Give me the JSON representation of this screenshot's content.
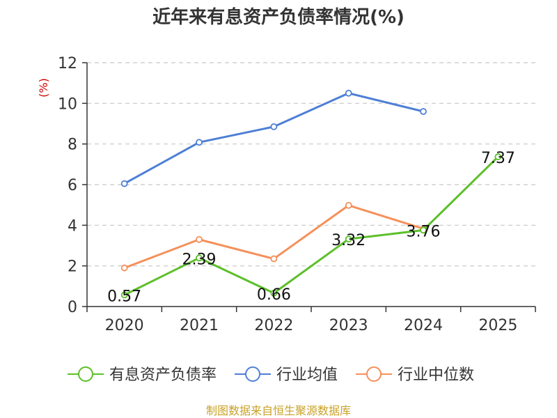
{
  "chart_data": {
    "type": "line",
    "title": "近年来有息资产负债率情况(%)",
    "ylabel": "(%)",
    "xlabel": "",
    "categories": [
      "2020",
      "2021",
      "2022",
      "2023",
      "2024",
      "2025"
    ],
    "ylim": [
      0,
      12
    ],
    "yticks": [
      0,
      2,
      4,
      6,
      8,
      10,
      12
    ],
    "grid": true,
    "legend_position": "bottom",
    "series": [
      {
        "name": "有息资产负债率",
        "color": "#5cbf2a",
        "values": [
          0.57,
          2.39,
          0.66,
          3.32,
          3.76,
          7.37
        ],
        "data_labels": [
          "0.57",
          "2.39",
          "0.66",
          "3.32",
          "3.76",
          "7.37"
        ]
      },
      {
        "name": "行业均值",
        "color": "#4e7fd6",
        "values": [
          6.05,
          8.08,
          8.85,
          10.5,
          9.6,
          null
        ]
      },
      {
        "name": "行业中位数",
        "color": "#f5905a",
        "values": [
          1.9,
          3.3,
          2.35,
          4.98,
          3.83,
          null
        ]
      }
    ]
  },
  "source_text": "制图数据来自恒生聚源数据库"
}
